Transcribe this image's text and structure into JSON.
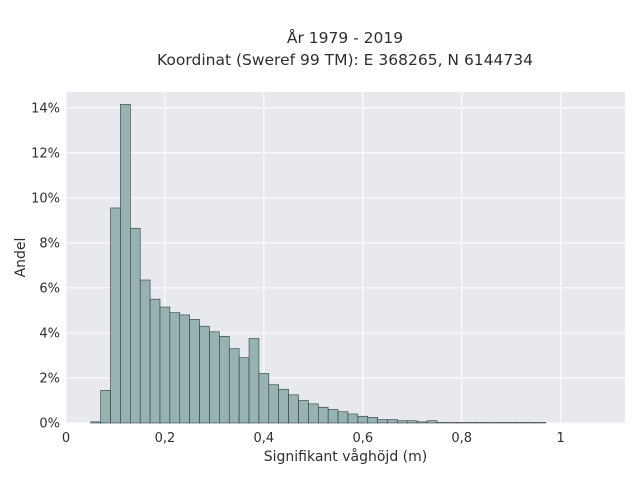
{
  "chart_data": {
    "type": "histogram",
    "title_lines": [
      "År 1979 - 2019",
      "Koordinat (Sweref 99 TM): E 368265, N 6144734"
    ],
    "xlabel": "Signifikant våghöjd (m)",
    "ylabel": "Andel",
    "xlim": [
      0,
      1.13
    ],
    "ylim": [
      0,
      14.7
    ],
    "x_ticks": [
      {
        "value": 0,
        "label": "0"
      },
      {
        "value": 0.2,
        "label": "0,2"
      },
      {
        "value": 0.4,
        "label": "0,4"
      },
      {
        "value": 0.6,
        "label": "0,6"
      },
      {
        "value": 0.8,
        "label": "0,8"
      },
      {
        "value": 1.0,
        "label": "1"
      }
    ],
    "y_ticks": [
      {
        "value": 0,
        "label": "0%"
      },
      {
        "value": 2,
        "label": "2%"
      },
      {
        "value": 4,
        "label": "4%"
      },
      {
        "value": 6,
        "label": "6%"
      },
      {
        "value": 8,
        "label": "8%"
      },
      {
        "value": 10,
        "label": "10%"
      },
      {
        "value": 12,
        "label": "12%"
      },
      {
        "value": 14,
        "label": "14%"
      }
    ],
    "grid": true,
    "bin_start": 0.05,
    "bin_width": 0.02,
    "values_percent": [
      0.05,
      1.45,
      9.55,
      14.15,
      8.65,
      6.35,
      5.5,
      5.15,
      4.9,
      4.8,
      4.6,
      4.3,
      4.05,
      3.85,
      3.3,
      2.9,
      3.75,
      2.2,
      1.7,
      1.5,
      1.25,
      1.0,
      0.85,
      0.7,
      0.6,
      0.5,
      0.4,
      0.3,
      0.25,
      0.15,
      0.15,
      0.1,
      0.1,
      0.05,
      0.1,
      0.02,
      0.02,
      0.02,
      0.02,
      0.02,
      0.02,
      0.02,
      0.02,
      0.02,
      0.02,
      0.02
    ],
    "colors": {
      "bar_fill": "#97b3b1",
      "bar_stroke": "#2f3a3a",
      "plot_bg": "#e8e8ef",
      "grid": "#ffffff"
    }
  }
}
